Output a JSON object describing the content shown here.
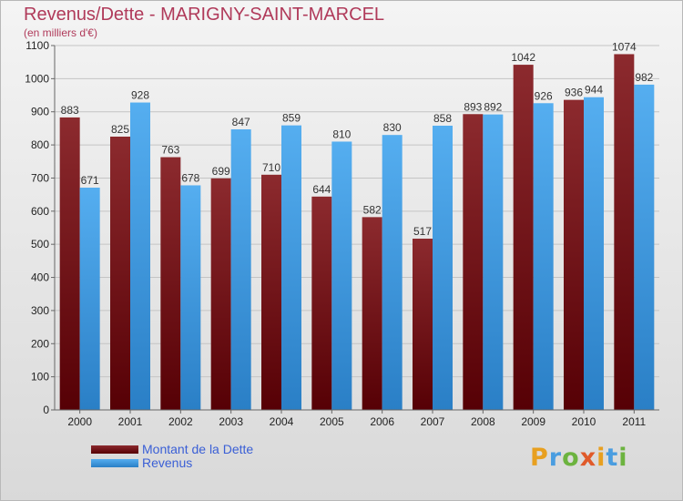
{
  "title": "Revenus/Dette - MARIGNY-SAINT-MARCEL",
  "subtitle": "(en milliers d'€)",
  "colors": {
    "dette": "#7a1a1c",
    "revenus": "#4aa3e6",
    "title": "#b03a5a",
    "legend_text": "#3a5fd6"
  },
  "legend": {
    "dette_label": "Montant de la Dette",
    "revenus_label": "Revenus"
  },
  "logo": {
    "letters": [
      "P",
      "r",
      "o",
      "x",
      "i",
      "t",
      "i"
    ],
    "colors": [
      "#e8a020",
      "#4a9de0",
      "#6cb33f",
      "#e05a2a",
      "#e8a020",
      "#4a9de0",
      "#6cb33f"
    ]
  },
  "chart_data": {
    "type": "bar",
    "categories": [
      "2000",
      "2001",
      "2002",
      "2003",
      "2004",
      "2005",
      "2006",
      "2007",
      "2008",
      "2009",
      "2010",
      "2011"
    ],
    "series": [
      {
        "name": "Montant de la Dette",
        "values": [
          883,
          825,
          763,
          699,
          710,
          644,
          582,
          517,
          893,
          1042,
          936,
          1074
        ]
      },
      {
        "name": "Revenus",
        "values": [
          671,
          928,
          678,
          847,
          859,
          810,
          830,
          858,
          892,
          926,
          944,
          982
        ]
      }
    ],
    "yticks": [
      0,
      100,
      200,
      300,
      400,
      500,
      600,
      700,
      800,
      900,
      1000,
      1100
    ],
    "ylim": [
      0,
      1100
    ],
    "grid": true,
    "legend_position": "bottom-left"
  }
}
